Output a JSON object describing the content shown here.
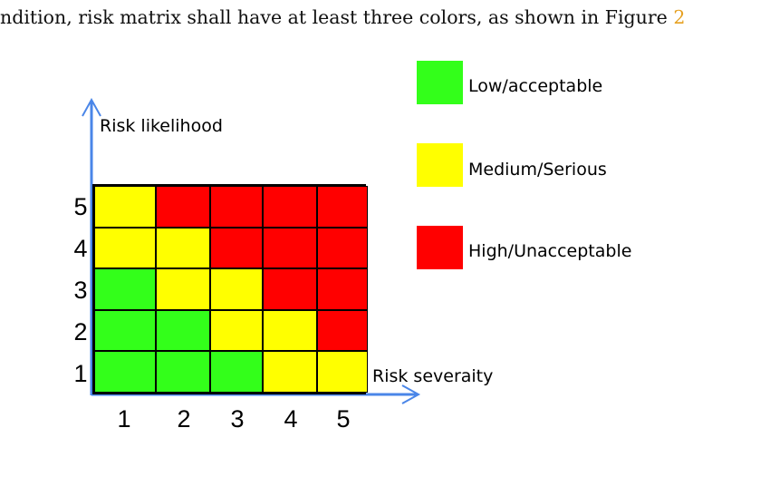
{
  "header_text": {
    "text": "ndition, risk matrix shall have at least three colors, as shown in Figure ",
    "figure_ref": "2"
  },
  "colors": {
    "low": "#33ff1a",
    "medium": "#ffff00",
    "high": "#ff0000",
    "axis": "#4a86e8"
  },
  "y_axis_label": "Risk likelihood",
  "x_axis_label": "Risk severaity",
  "y_ticks": [
    "5",
    "4",
    "3",
    "2",
    "1"
  ],
  "x_ticks": [
    "1",
    "2",
    "3",
    "4",
    "5"
  ],
  "matrix_rows": [
    [
      "medium",
      "high",
      "high",
      "high",
      "high"
    ],
    [
      "medium",
      "medium",
      "high",
      "high",
      "high"
    ],
    [
      "low",
      "medium",
      "medium",
      "high",
      "high"
    ],
    [
      "low",
      "low",
      "medium",
      "medium",
      "high"
    ],
    [
      "low",
      "low",
      "low",
      "medium",
      "medium"
    ]
  ],
  "legend": [
    {
      "level": "low",
      "label": "Low/acceptable"
    },
    {
      "level": "medium",
      "label": "Medium/Serious"
    },
    {
      "level": "high",
      "label": "High/Unacceptable"
    }
  ]
}
